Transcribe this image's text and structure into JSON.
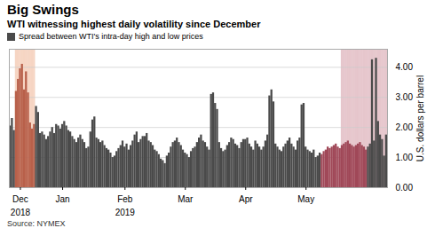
{
  "chart_data": {
    "type": "bar",
    "title": "Big Swings",
    "subtitle": "WTI witnessing highest daily volatility since December",
    "ylabel": "U.S. dollars per barrel",
    "source": "Source: NYMEX",
    "categories": [
      null,
      null,
      null,
      null,
      null,
      "Dec",
      null,
      null,
      null,
      null,
      null,
      null,
      null,
      null,
      null,
      null,
      null,
      null,
      null,
      null,
      null,
      null,
      null,
      null,
      null,
      null,
      "Jan",
      null,
      null,
      null,
      null,
      null,
      null,
      null,
      null,
      null,
      null,
      null,
      null,
      null,
      null,
      null,
      null,
      null,
      null,
      null,
      null,
      null,
      null,
      null,
      null,
      null,
      null,
      null,
      null,
      null,
      null,
      "Feb",
      null,
      null,
      null,
      null,
      null,
      null,
      null,
      null,
      null,
      null,
      null,
      null,
      null,
      null,
      null,
      null,
      null,
      null,
      null,
      null,
      null,
      null,
      null,
      null,
      null,
      null,
      null,
      null,
      null,
      "Mar",
      null,
      null,
      null,
      null,
      null,
      null,
      null,
      null,
      null,
      null,
      null,
      null,
      null,
      null,
      null,
      null,
      null,
      null,
      null,
      null,
      null,
      null,
      null,
      null,
      null,
      null,
      null,
      null,
      null,
      "Apr",
      null,
      null,
      null,
      null,
      null,
      null,
      null,
      null,
      null,
      null,
      null,
      null,
      null,
      null,
      null,
      null,
      null,
      null,
      null,
      null,
      null,
      null,
      null,
      null,
      null,
      null,
      null,
      null,
      null,
      "May",
      null,
      null,
      null,
      null,
      null,
      null,
      null,
      null,
      null,
      null,
      null,
      null,
      null,
      null,
      null,
      null,
      null,
      null,
      null,
      null,
      null,
      null,
      null,
      null,
      null,
      null,
      null,
      null,
      null,
      null,
      null,
      null,
      null,
      null,
      null,
      null,
      null,
      null,
      null,
      null
    ],
    "series": [
      {
        "name": "Spread between WTI's intra-day high and low prices",
        "color": "#4a4a4a",
        "values": [
          2.05,
          2.3,
          1.9,
          3.2,
          3.6,
          3.95,
          4.1,
          3.25,
          3.85,
          3.15,
          2.15,
          1.95,
          2.1,
          2.7,
          2.5,
          1.8,
          1.85,
          1.75,
          1.6,
          1.7,
          1.85,
          2.0,
          1.8,
          2.1,
          2.05,
          1.95,
          2.1,
          2.2,
          2.05,
          1.9,
          1.85,
          1.7,
          1.6,
          1.5,
          1.65,
          1.75,
          1.6,
          1.5,
          1.3,
          1.35,
          1.85,
          2.25,
          2.35,
          1.65,
          1.6,
          1.5,
          1.55,
          1.4,
          1.3,
          1.25,
          1.15,
          1.0,
          1.05,
          1.2,
          1.3,
          1.4,
          1.55,
          1.35,
          1.45,
          1.25,
          1.4,
          1.55,
          1.75,
          1.85,
          1.5,
          1.6,
          1.7,
          1.7,
          1.8,
          1.55,
          1.5,
          1.4,
          1.25,
          1.2,
          1.1,
          0.95,
          0.9,
          0.8,
          1.05,
          1.15,
          1.35,
          1.5,
          1.55,
          1.65,
          1.5,
          1.4,
          1.25,
          1.15,
          1.1,
          1.0,
          1.2,
          1.3,
          1.35,
          1.5,
          1.65,
          1.75,
          1.55,
          1.5,
          1.35,
          1.25,
          3.1,
          3.15,
          2.8,
          2.6,
          1.5,
          1.3,
          1.2,
          1.25,
          1.4,
          1.5,
          1.65,
          1.6,
          1.45,
          1.4,
          1.3,
          1.5,
          1.6,
          1.6,
          1.65,
          1.45,
          1.35,
          1.25,
          1.55,
          1.45,
          1.35,
          1.25,
          1.35,
          1.55,
          1.75,
          3.05,
          3.25,
          2.85,
          1.45,
          1.35,
          1.25,
          1.2,
          1.35,
          1.45,
          1.55,
          1.65,
          1.45,
          1.35,
          1.25,
          1.55,
          1.65,
          2.75,
          2.8,
          1.35,
          1.25,
          1.2,
          1.15,
          1.25,
          1.0,
          1.05,
          1.15,
          1.1,
          1.2,
          1.25,
          1.35,
          1.3,
          1.35,
          1.4,
          1.45,
          1.35,
          1.3,
          1.4,
          1.45,
          1.5,
          1.55,
          1.45,
          1.4,
          1.35,
          1.4,
          1.45,
          1.5,
          1.4,
          1.35,
          1.25,
          1.35,
          1.45,
          4.25,
          1.55,
          4.3,
          2.2,
          1.75,
          1.6,
          1.05,
          1.75
        ],
        "colors": [
          "#4a4a4a",
          "#4a4a4a",
          "#4a4a4a",
          "#b8604a",
          "#b8604a",
          "#b8604a",
          "#b8604a",
          "#b8604a",
          "#b8604a",
          "#b8604a",
          "#b8604a",
          "#b8604a",
          "#b8604a",
          "#4a4a4a",
          "#4a4a4a",
          "#4a4a4a",
          "#4a4a4a",
          "#4a4a4a",
          "#4a4a4a",
          "#4a4a4a",
          "#4a4a4a",
          "#4a4a4a",
          "#4a4a4a",
          "#4a4a4a",
          "#4a4a4a",
          "#4a4a4a",
          "#4a4a4a",
          "#4a4a4a",
          "#4a4a4a",
          "#4a4a4a",
          "#4a4a4a",
          "#4a4a4a",
          "#4a4a4a",
          "#4a4a4a",
          "#4a4a4a",
          "#4a4a4a",
          "#4a4a4a",
          "#4a4a4a",
          "#4a4a4a",
          "#4a4a4a",
          "#4a4a4a",
          "#4a4a4a",
          "#4a4a4a",
          "#4a4a4a",
          "#4a4a4a",
          "#4a4a4a",
          "#4a4a4a",
          "#4a4a4a",
          "#4a4a4a",
          "#4a4a4a",
          "#4a4a4a",
          "#4a4a4a",
          "#4a4a4a",
          "#4a4a4a",
          "#4a4a4a",
          "#4a4a4a",
          "#4a4a4a",
          "#4a4a4a",
          "#4a4a4a",
          "#4a4a4a",
          "#4a4a4a",
          "#4a4a4a",
          "#4a4a4a",
          "#4a4a4a",
          "#4a4a4a",
          "#4a4a4a",
          "#4a4a4a",
          "#4a4a4a",
          "#4a4a4a",
          "#4a4a4a",
          "#4a4a4a",
          "#4a4a4a",
          "#4a4a4a",
          "#4a4a4a",
          "#4a4a4a",
          "#4a4a4a",
          "#4a4a4a",
          "#4a4a4a",
          "#4a4a4a",
          "#4a4a4a",
          "#4a4a4a",
          "#4a4a4a",
          "#4a4a4a",
          "#4a4a4a",
          "#4a4a4a",
          "#4a4a4a",
          "#4a4a4a",
          "#4a4a4a",
          "#4a4a4a",
          "#4a4a4a",
          "#4a4a4a",
          "#4a4a4a",
          "#4a4a4a",
          "#4a4a4a",
          "#4a4a4a",
          "#4a4a4a",
          "#4a4a4a",
          "#4a4a4a",
          "#4a4a4a",
          "#4a4a4a",
          "#4a4a4a",
          "#4a4a4a",
          "#4a4a4a",
          "#4a4a4a",
          "#4a4a4a",
          "#4a4a4a",
          "#4a4a4a",
          "#4a4a4a",
          "#4a4a4a",
          "#4a4a4a",
          "#4a4a4a",
          "#4a4a4a",
          "#4a4a4a",
          "#4a4a4a",
          "#4a4a4a",
          "#4a4a4a",
          "#4a4a4a",
          "#4a4a4a",
          "#4a4a4a",
          "#4a4a4a",
          "#4a4a4a",
          "#4a4a4a",
          "#4a4a4a",
          "#4a4a4a",
          "#4a4a4a",
          "#4a4a4a",
          "#4a4a4a",
          "#4a4a4a",
          "#4a4a4a",
          "#4a4a4a",
          "#4a4a4a",
          "#4a4a4a",
          "#4a4a4a",
          "#4a4a4a",
          "#4a4a4a",
          "#4a4a4a",
          "#4a4a4a",
          "#4a4a4a",
          "#4a4a4a",
          "#4a4a4a",
          "#4a4a4a",
          "#4a4a4a",
          "#4a4a4a",
          "#4a4a4a",
          "#4a4a4a",
          "#4a4a4a",
          "#4a4a4a",
          "#4a4a4a",
          "#4a4a4a",
          "#4a4a4a",
          "#4a4a4a",
          "#4a4a4a",
          "#4a4a4a",
          "#4a4a4a",
          "#4a4a4a",
          "#a04858",
          "#a04858",
          "#a04858",
          "#a04858",
          "#a04858",
          "#a04858",
          "#a04858",
          "#a04858",
          "#a04858",
          "#a04858",
          "#a04858",
          "#a04858",
          "#a04858",
          "#a04858",
          "#a04858",
          "#a04858",
          "#a04858",
          "#a04858",
          "#a04858",
          "#a04858",
          "#a04858",
          "#a04858",
          "#a04858"
        ]
      }
    ],
    "annotations": [
      {
        "type": "text",
        "text": "2018",
        "category": "Dec"
      },
      {
        "type": "text",
        "text": "2019",
        "category": "Feb"
      },
      {
        "type": "span",
        "start": 3,
        "end": 12,
        "color": "#e8956a"
      },
      {
        "type": "span",
        "start": 165,
        "end": 187,
        "color": "#c07080"
      }
    ],
    "ylim": [
      0,
      4.6
    ],
    "yticks": [
      {
        "value": 0.0,
        "label": "0.00"
      },
      {
        "value": 1.0,
        "label": "1.00"
      },
      {
        "value": 2.0,
        "label": "2.00"
      },
      {
        "value": 3.0,
        "label": "3.00"
      },
      {
        "value": 4.0,
        "label": "4.00"
      }
    ],
    "grid": true,
    "legend": "top left"
  }
}
